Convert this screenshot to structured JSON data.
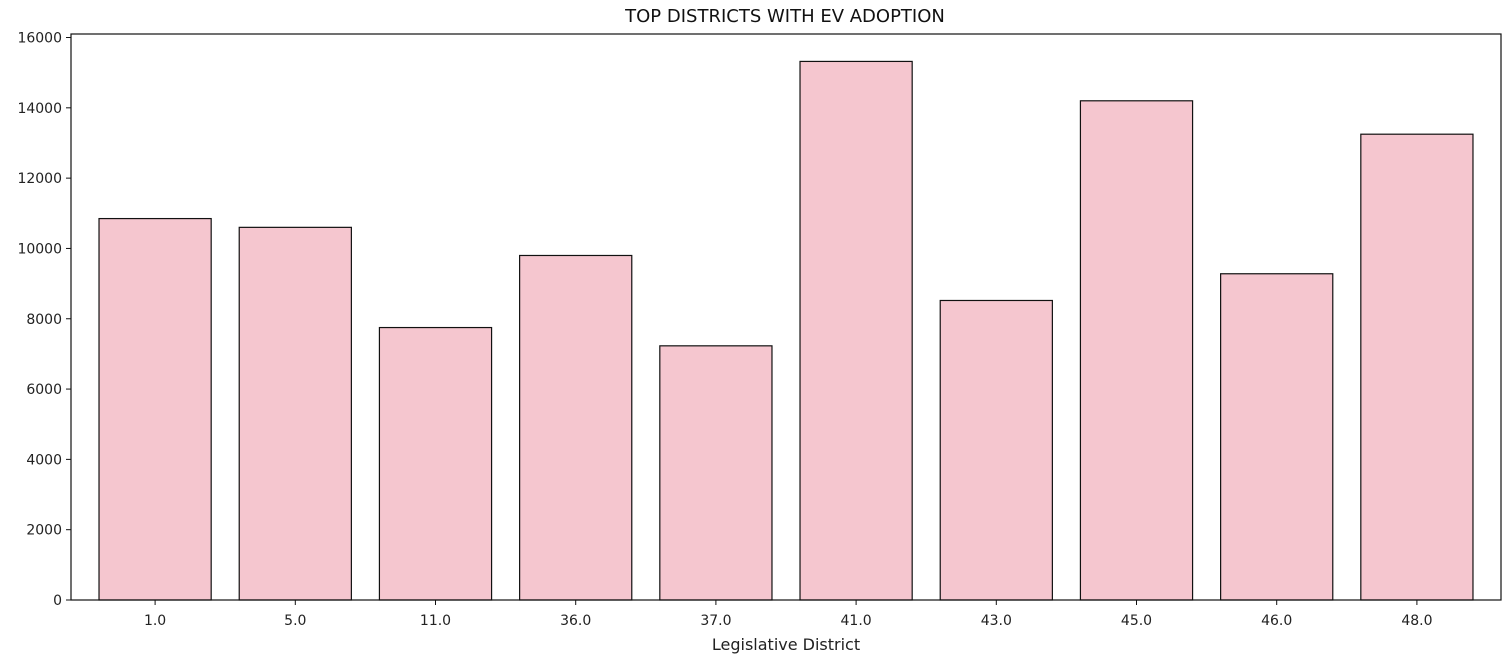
{
  "chart_data": {
    "type": "bar",
    "title": "TOP DISTRICTS WITH EV ADOPTION",
    "xlabel": "Legislative District",
    "ylabel": "",
    "categories": [
      "1.0",
      "5.0",
      "11.0",
      "36.0",
      "37.0",
      "41.0",
      "43.0",
      "45.0",
      "46.0",
      "48.0"
    ],
    "values": [
      10850,
      10600,
      7750,
      9800,
      7230,
      15320,
      8520,
      14200,
      9280,
      13250
    ],
    "ylim": [
      0,
      16100
    ],
    "yticks": [
      0,
      2000,
      4000,
      6000,
      8000,
      10000,
      12000,
      14000,
      16000
    ],
    "grid": false,
    "bar_color": "#f5c6cf",
    "edge_color": "#111111"
  }
}
